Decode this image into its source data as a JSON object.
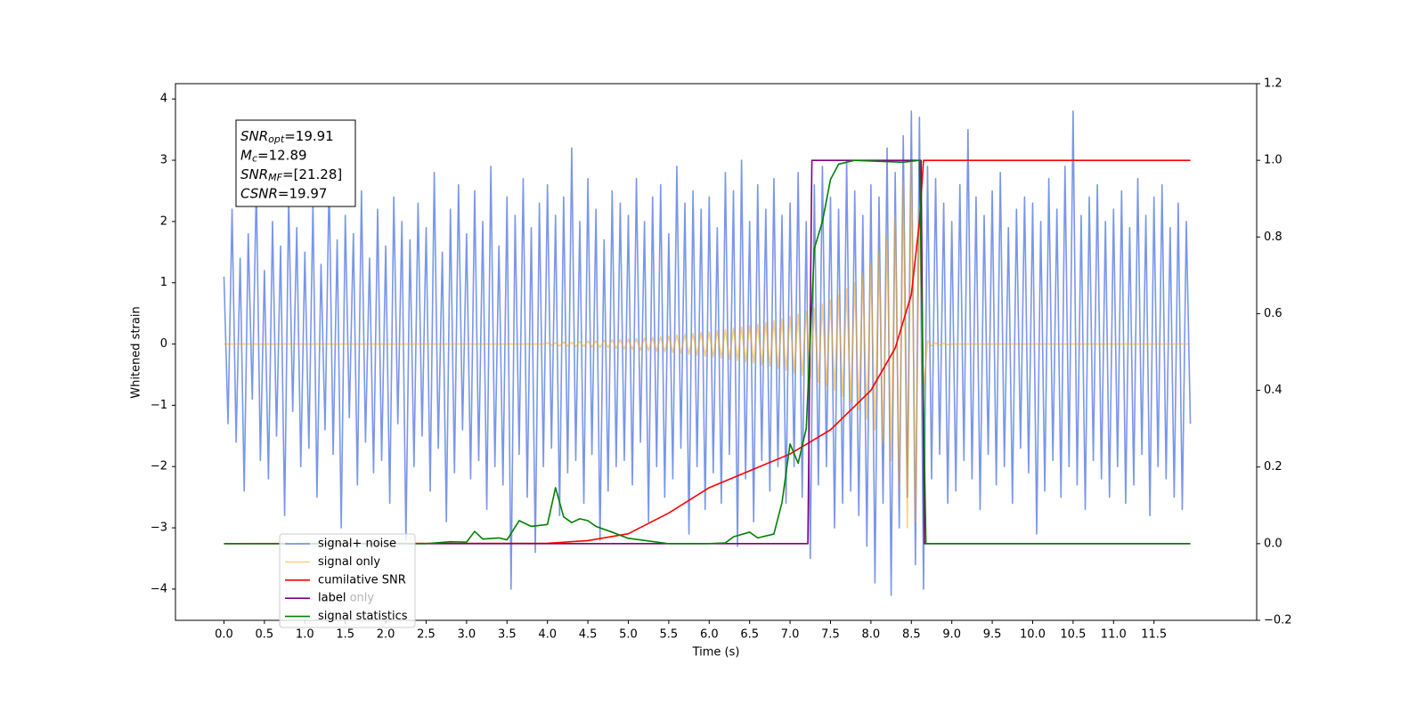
{
  "chart_data": {
    "type": "line",
    "xlabel": "Time (s)",
    "ylabel": "Whitened strain",
    "xlim": [
      -0.6,
      12.77
    ],
    "ylim": [
      -4.51,
      4.25
    ],
    "y2lim": [
      -0.2,
      1.2
    ],
    "grid": false,
    "legend": "lower left",
    "xticks": [
      {
        "value": 0,
        "label": "0.0"
      },
      {
        "value": 0.5,
        "label": "0.5"
      },
      {
        "value": 1,
        "label": "1.0"
      },
      {
        "value": 1.5,
        "label": "1.5"
      },
      {
        "value": 2,
        "label": "2.0"
      },
      {
        "value": 2.5,
        "label": "2.5"
      },
      {
        "value": 3,
        "label": "3.0"
      },
      {
        "value": 3.5,
        "label": "3.5"
      },
      {
        "value": 4,
        "label": "4.0"
      },
      {
        "value": 4.5,
        "label": "4.5"
      },
      {
        "value": 5,
        "label": "5.0"
      },
      {
        "value": 5.5,
        "label": "5.5"
      },
      {
        "value": 6,
        "label": "6.0"
      },
      {
        "value": 6.5,
        "label": "6.5"
      },
      {
        "value": 7,
        "label": "7.0"
      },
      {
        "value": 7.5,
        "label": "7.5"
      },
      {
        "value": 8,
        "label": "8.0"
      },
      {
        "value": 8.5,
        "label": "8.5"
      },
      {
        "value": 9,
        "label": "9.0"
      },
      {
        "value": 9.5,
        "label": "9.5"
      },
      {
        "value": 10,
        "label": "10.0"
      },
      {
        "value": 10.5,
        "label": "10.5"
      },
      {
        "value": 11,
        "label": "11.0"
      },
      {
        "value": 11.5,
        "label": "11.5"
      }
    ],
    "yticks": [
      {
        "value": -4,
        "label": "−4"
      },
      {
        "value": -3,
        "label": "−3"
      },
      {
        "value": -2,
        "label": "−2"
      },
      {
        "value": -1,
        "label": "−1"
      },
      0,
      1,
      2,
      3,
      4
    ],
    "y2ticks": [
      {
        "value": -0.2,
        "label": "−0.2"
      },
      {
        "value": 0,
        "label": "0.0"
      },
      0.2,
      0.4,
      0.6,
      0.8,
      {
        "value": 1,
        "label": "1.0"
      },
      1.2
    ],
    "annotations": [
      {
        "symbol": "SNR",
        "sub": "opt",
        "text": "=19.91"
      },
      {
        "symbol": "M",
        "sub": "c",
        "text": "=12.89"
      },
      {
        "symbol": "SNR",
        "sub": "MF",
        "text": "=[21.28]"
      },
      {
        "symbol": "CSNR",
        "text": "=19.97"
      }
    ],
    "legend_ghost_labels": [
      "label only"
    ],
    "x": [
      0,
      0.05,
      0.1,
      0.15,
      0.2,
      0.25,
      0.3,
      0.35,
      0.4,
      0.45,
      0.5,
      0.55,
      0.6,
      0.65,
      0.7,
      0.75,
      0.8,
      0.85,
      0.9,
      0.95,
      1,
      1.05,
      1.1,
      1.15,
      1.2,
      1.25,
      1.3,
      1.35,
      1.4,
      1.45,
      1.5,
      1.55,
      1.6,
      1.65,
      1.7,
      1.75,
      1.8,
      1.85,
      1.9,
      1.95,
      2,
      2.05,
      2.1,
      2.15,
      2.2,
      2.25,
      2.3,
      2.35,
      2.4,
      2.45,
      2.5,
      2.55,
      2.6,
      2.65,
      2.7,
      2.75,
      2.8,
      2.85,
      2.9,
      2.95,
      3,
      3.05,
      3.1,
      3.15,
      3.2,
      3.25,
      3.3,
      3.35,
      3.4,
      3.45,
      3.5,
      3.55,
      3.6,
      3.65,
      3.7,
      3.75,
      3.8,
      3.85,
      3.9,
      3.95,
      4,
      4.05,
      4.1,
      4.15,
      4.2,
      4.25,
      4.3,
      4.35,
      4.4,
      4.45,
      4.5,
      4.55,
      4.6,
      4.65,
      4.7,
      4.75,
      4.8,
      4.85,
      4.9,
      4.95,
      5,
      5.05,
      5.1,
      5.15,
      5.2,
      5.25,
      5.3,
      5.35,
      5.4,
      5.45,
      5.5,
      5.55,
      5.6,
      5.65,
      5.7,
      5.75,
      5.8,
      5.85,
      5.9,
      5.95,
      6,
      6.05,
      6.1,
      6.15,
      6.2,
      6.25,
      6.3,
      6.35,
      6.4,
      6.45,
      6.5,
      6.55,
      6.6,
      6.65,
      6.7,
      6.75,
      6.8,
      6.85,
      6.9,
      6.95,
      7,
      7.05,
      7.1,
      7.15,
      7.2,
      7.25,
      7.3,
      7.35,
      7.4,
      7.45,
      7.5,
      7.55,
      7.6,
      7.65,
      7.7,
      7.75,
      7.8,
      7.85,
      7.9,
      7.95,
      8,
      8.05,
      8.1,
      8.15,
      8.2,
      8.25,
      8.3,
      8.35,
      8.4,
      8.45,
      8.5,
      8.55,
      8.6,
      8.65,
      8.7,
      8.75,
      8.8,
      8.85,
      8.9,
      8.95,
      9,
      9.05,
      9.1,
      9.15,
      9.2,
      9.25,
      9.3,
      9.35,
      9.4,
      9.45,
      9.5,
      9.55,
      9.6,
      9.65,
      9.7,
      9.75,
      9.8,
      9.85,
      9.9,
      9.95,
      10,
      10.05,
      10.1,
      10.15,
      10.2,
      10.25,
      10.3,
      10.35,
      10.4,
      10.45,
      10.5,
      10.55,
      10.6,
      10.65,
      10.7,
      10.75,
      10.8,
      10.85,
      10.9,
      10.95,
      11,
      11.05,
      11.1,
      11.15,
      11.2,
      11.25,
      11.3,
      11.35,
      11.4,
      11.45,
      11.5,
      11.55,
      11.6,
      11.65,
      11.7,
      11.75,
      11.8,
      11.85,
      11.9,
      11.95
    ],
    "series": [
      {
        "name": "signal+ noise",
        "color": "#4169e1",
        "alpha": 0.7,
        "values": [
          1.1,
          -1.3,
          2.2,
          -1.6,
          1.4,
          -2.4,
          1.8,
          -0.9,
          2.6,
          -1.9,
          1.2,
          -2.2,
          2.0,
          -1.5,
          1.6,
          -2.8,
          2.4,
          -1.1,
          1.9,
          -2.0,
          1.5,
          -1.7,
          2.3,
          -2.5,
          1.3,
          -1.4,
          2.7,
          -1.8,
          1.7,
          -3.0,
          2.1,
          -1.2,
          1.8,
          -2.3,
          2.5,
          -1.6,
          1.4,
          -2.1,
          2.2,
          -1.9,
          1.6,
          -2.6,
          2.4,
          -1.3,
          2.0,
          -3.2,
          1.7,
          -2.0,
          2.3,
          -1.5,
          1.9,
          -2.4,
          2.8,
          -1.7,
          1.5,
          -2.9,
          2.2,
          -2.1,
          2.6,
          -1.4,
          1.8,
          -2.2,
          2.5,
          -1.9,
          2.0,
          -2.7,
          2.9,
          -2.0,
          1.6,
          -2.3,
          2.4,
          -4.0,
          2.1,
          -1.8,
          2.7,
          -2.5,
          1.9,
          -3.4,
          2.3,
          -2.0,
          2.6,
          -1.7,
          2.1,
          -2.8,
          2.4,
          -2.1,
          3.2,
          -1.9,
          2.0,
          -2.6,
          2.7,
          -1.8,
          2.2,
          -3.2,
          1.7,
          -2.4,
          2.5,
          -2.0,
          2.3,
          -1.9,
          2.1,
          -2.3,
          2.7,
          -1.6,
          2.0,
          -2.9,
          2.4,
          -2.0,
          2.6,
          -2.5,
          1.8,
          -2.2,
          2.9,
          -1.7,
          2.3,
          -3.1,
          2.5,
          -2.0,
          2.2,
          -2.7,
          2.4,
          -2.1,
          1.9,
          -2.6,
          2.8,
          -1.8,
          2.5,
          -3.3,
          3.0,
          -2.2,
          2.0,
          -2.9,
          2.6,
          -1.9,
          2.2,
          -2.4,
          2.7,
          -2.0,
          2.1,
          -2.6,
          2.3,
          -2.0,
          2.8,
          -2.5,
          2.0,
          -3.5,
          2.6,
          -2.3,
          2.9,
          -2.0,
          2.4,
          -3.0,
          2.2,
          -2.6,
          3.0,
          -2.4,
          2.5,
          -2.8,
          2.1,
          -3.3,
          2.6,
          -3.9,
          2.4,
          -2.6,
          3.2,
          -4.1,
          2.8,
          -3.0,
          3.4,
          -2.5,
          3.8,
          -3.6,
          3.7,
          -4.0,
          2.9,
          -2.2,
          2.7,
          -1.8,
          2.3,
          -2.6,
          2.0,
          -2.4,
          2.6,
          -1.9,
          3.5,
          -2.2,
          2.4,
          -2.7,
          2.1,
          -1.8,
          2.5,
          -2.3,
          2.8,
          -2.0,
          1.9,
          -2.6,
          2.2,
          -1.7,
          2.4,
          -2.1,
          2.3,
          -3.1,
          2.0,
          -2.4,
          2.7,
          -1.9,
          2.2,
          -2.5,
          2.9,
          -2.0,
          3.8,
          -2.3,
          2.1,
          -2.7,
          2.4,
          -1.9,
          2.6,
          -2.2,
          2.0,
          -2.5,
          2.2,
          -2.0,
          2.5,
          -2.6,
          1.9,
          -2.3,
          2.7,
          -1.8,
          2.1,
          -2.8,
          2.4,
          -2.0,
          2.6,
          -2.2,
          1.9,
          -2.5,
          2.3,
          -2.7,
          2.0,
          -1.3
        ]
      },
      {
        "name": "signal only",
        "color": "#ffa500",
        "alpha": 0.5,
        "values": [
          0,
          0,
          0,
          0,
          0,
          0,
          0,
          0,
          0,
          0,
          0,
          0,
          0,
          0,
          0,
          0,
          0,
          0,
          0,
          0,
          0,
          0,
          0,
          0,
          0,
          0,
          0,
          0,
          0,
          0,
          0,
          0,
          0,
          0,
          0,
          0,
          0,
          0,
          0,
          0,
          0,
          0,
          0,
          0,
          0,
          0,
          0,
          0,
          0,
          0,
          0,
          0,
          0,
          0,
          0,
          0,
          0,
          0,
          0,
          0,
          0,
          0,
          0,
          0,
          0,
          0,
          0,
          0,
          0,
          0,
          0,
          0,
          0,
          0,
          0,
          0,
          0,
          0,
          0,
          0,
          0.02,
          -0.02,
          0.02,
          -0.03,
          0.03,
          -0.03,
          0.03,
          -0.04,
          0.04,
          -0.04,
          0.05,
          -0.05,
          0.05,
          -0.06,
          0.06,
          -0.06,
          0.07,
          -0.07,
          0.07,
          -0.08,
          0.08,
          -0.09,
          0.09,
          -0.1,
          0.1,
          -0.11,
          0.11,
          -0.12,
          0.12,
          -0.13,
          0.13,
          -0.14,
          0.15,
          -0.15,
          0.16,
          -0.17,
          0.17,
          -0.18,
          0.19,
          -0.2,
          0.2,
          -0.21,
          0.22,
          -0.23,
          0.24,
          -0.25,
          0.26,
          -0.27,
          0.28,
          -0.29,
          0.3,
          -0.31,
          0.32,
          -0.34,
          0.35,
          -0.36,
          0.38,
          -0.4,
          0.41,
          -0.43,
          0.45,
          -0.47,
          0.49,
          -0.51,
          0.54,
          -0.56,
          0.59,
          -0.62,
          0.65,
          -0.68,
          0.72,
          -0.76,
          0.8,
          -0.85,
          0.9,
          -0.95,
          1.0,
          -1.07,
          1.14,
          -1.22,
          1.3,
          -1.4,
          1.5,
          -1.62,
          1.75,
          -1.9,
          2.1,
          -2.35,
          2.65,
          -3.0,
          3.0,
          -2.9,
          2.2,
          -0.8,
          0.05,
          -0.03,
          0.02,
          -0.02,
          0.01,
          -0.01,
          0,
          0,
          0,
          0,
          0,
          0,
          0,
          0,
          0,
          0,
          0,
          0,
          0,
          0,
          0,
          0,
          0,
          0,
          0,
          0,
          0,
          0,
          0,
          0,
          0,
          0,
          0,
          0,
          0,
          0,
          0,
          0,
          0,
          0,
          0,
          0,
          0,
          0,
          0,
          0,
          0,
          0,
          0,
          0,
          0,
          0,
          0,
          0,
          0,
          0,
          0,
          0,
          0,
          0,
          0,
          0,
          0,
          0,
          0,
          0
        ]
      },
      {
        "name": "cumilative SNR",
        "color": "#ff0000",
        "axis": "y2",
        "x": [
          0,
          4,
          4.5,
          5,
          5.5,
          6,
          6.5,
          7,
          7.5,
          8,
          8.3,
          8.5,
          8.6,
          8.65,
          11.95
        ],
        "values": [
          0,
          0.001,
          0.008,
          0.026,
          0.08,
          0.146,
          0.19,
          0.234,
          0.297,
          0.4,
          0.51,
          0.65,
          0.84,
          1.0,
          1.0
        ]
      },
      {
        "name": "label",
        "color": "#800080",
        "axis": "y2",
        "x": [
          0,
          7.22,
          7.27,
          8.62,
          8.66,
          11.95
        ],
        "values": [
          0,
          0,
          1,
          1,
          0,
          0
        ]
      },
      {
        "name": "signal statistics",
        "color": "#008000",
        "axis": "y2",
        "x": [
          0,
          2.5,
          2.8,
          3.0,
          3.1,
          3.2,
          3.4,
          3.5,
          3.65,
          3.8,
          4.0,
          4.1,
          4.2,
          4.3,
          4.4,
          4.5,
          4.6,
          4.8,
          5.0,
          5.5,
          6.0,
          6.2,
          6.3,
          6.5,
          6.6,
          6.8,
          6.9,
          7.0,
          7.1,
          7.2,
          7.3,
          7.4,
          7.5,
          7.6,
          7.8,
          8.4,
          8.6,
          8.68,
          11.95
        ],
        "values": [
          0,
          0,
          0.005,
          0.004,
          0.032,
          0.012,
          0.015,
          0.01,
          0.06,
          0.045,
          0.05,
          0.146,
          0.07,
          0.055,
          0.065,
          0.06,
          0.045,
          0.03,
          0.014,
          0,
          0,
          0.002,
          0.018,
          0.03,
          0.015,
          0.025,
          0.107,
          0.26,
          0.21,
          0.3,
          0.77,
          0.84,
          0.95,
          0.99,
          1.0,
          0.995,
          1.0,
          0,
          0
        ]
      }
    ]
  }
}
